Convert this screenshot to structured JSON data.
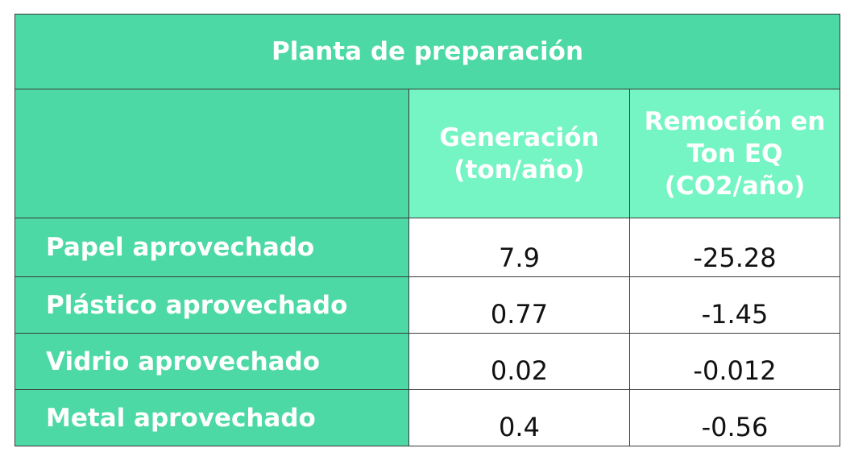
{
  "table": {
    "title": "Planta de preparación",
    "headers": {
      "generation": [
        "Generación",
        "(ton/año)"
      ],
      "removal": [
        "Remoción en",
        "Ton EQ",
        "(CO2/año)"
      ]
    },
    "rows": [
      {
        "label": "Papel aprovechado",
        "generation": "7.9",
        "removal": "-25.28"
      },
      {
        "label": "Plástico aprovechado",
        "generation": "0.77",
        "removal": "-1.45"
      },
      {
        "label": "Vidrio aprovechado",
        "generation": "0.02",
        "removal": "-0.012"
      },
      {
        "label": "Metal aprovechado",
        "generation": "0.4",
        "removal": "-0.56"
      }
    ]
  },
  "colors": {
    "title_bg": "#4cd9a5",
    "header_bg": "#76f5c4",
    "label_bg": "#4cd9a5",
    "value_bg": "#ffffff",
    "border": "#3a3a3a"
  }
}
